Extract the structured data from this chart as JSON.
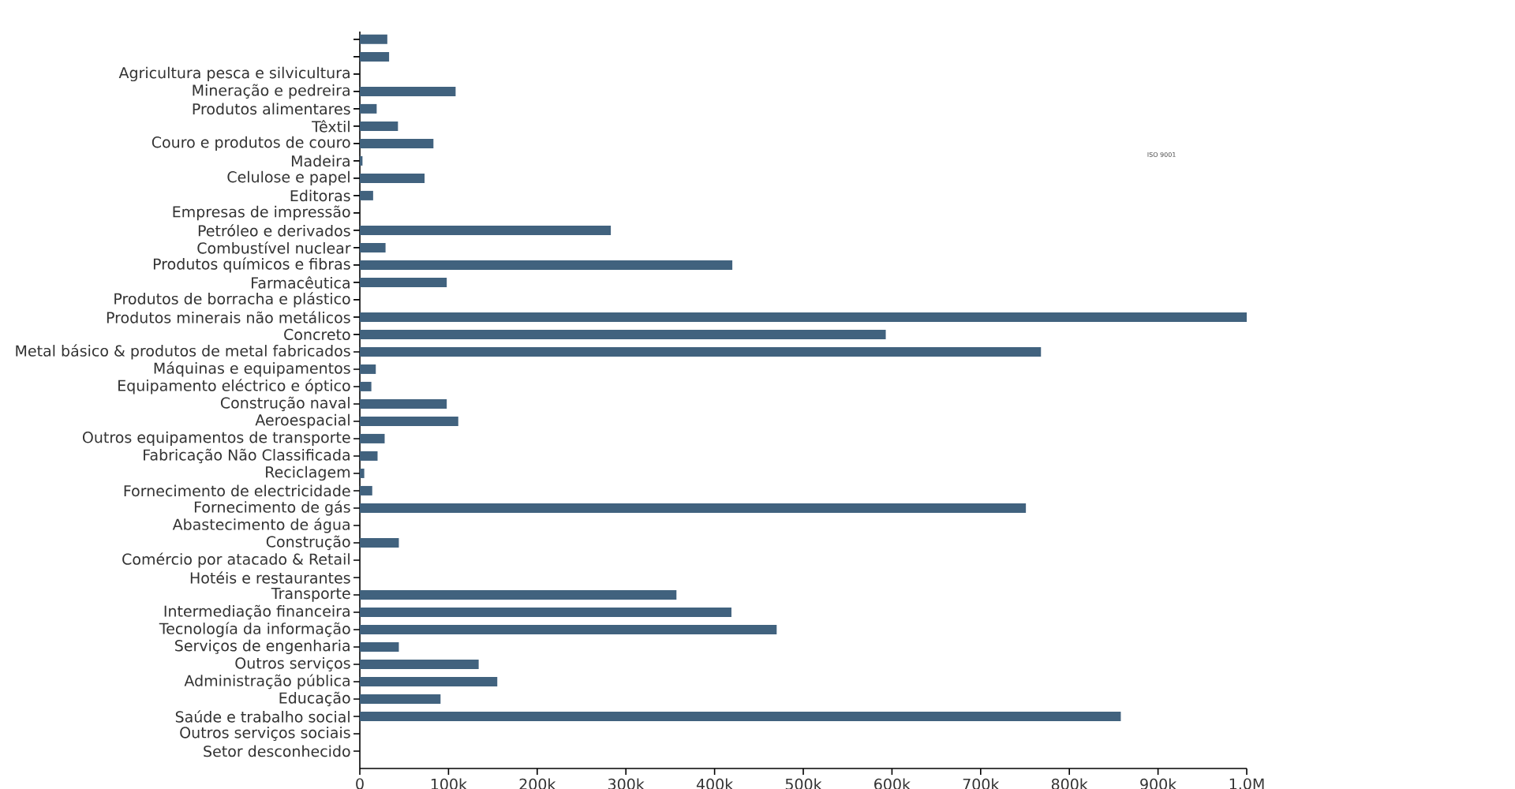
{
  "chart_data": {
    "type": "bar",
    "orientation": "horizontal",
    "color": "#41627e",
    "categories": [
      null,
      null,
      "Agricultura pesca e silvicultura",
      "Mineração e pedreira",
      "Produtos alimentares",
      "Têxtil",
      "Couro e produtos de couro",
      "Madeira",
      "Celulose e papel",
      "Editoras",
      "Empresas de impressão",
      "Petróleo e derivados",
      "Combustível nuclear",
      "Produtos químicos e fibras",
      "Farmacêutica",
      "Produtos de borracha e plástico",
      "Produtos minerais não metálicos",
      "Concreto",
      "Metal básico & produtos de metal fabricados",
      "Máquinas e equipamentos",
      "Equipamento eléctrico e óptico",
      "Construção naval",
      "Aeroespacial",
      "Outros equipamentos de transporte",
      "Fabricação Não Classificada",
      "Reciclagem",
      "Fornecimento de electricidade",
      "Fornecimento de gás",
      "Abastecimento de água",
      "Construção",
      "Comércio por atacado & Retail",
      "Hotéis e restaurantes",
      "Transporte",
      "Intermediação financeira",
      "Tecnología da informação",
      "Serviços de engenharia",
      "Outros serviços",
      "Administração pública",
      "Educação",
      "Saúde e trabalho social",
      "Outros serviços sociais",
      "Setor desconhecido"
    ],
    "values": [
      31000,
      33000,
      0,
      108000,
      19000,
      43000,
      83000,
      3000,
      73000,
      15000,
      0,
      283000,
      29000,
      420000,
      98000,
      0,
      1000000,
      593000,
      768000,
      18000,
      13000,
      98000,
      111000,
      28000,
      20000,
      5000,
      14000,
      751000,
      0,
      44000,
      0,
      0,
      357000,
      419000,
      470000,
      44000,
      134000,
      155000,
      91000,
      858000,
      0,
      0
    ],
    "xlim": [
      0,
      1000000
    ],
    "xticks": [
      0,
      {
        "value": 100000,
        "label": "100k"
      },
      {
        "value": 200000,
        "label": "200k"
      },
      {
        "value": 300000,
        "label": "300k"
      },
      {
        "value": 400000,
        "label": "400k"
      },
      {
        "value": 500000,
        "label": "500k"
      },
      {
        "value": 600000,
        "label": "600k"
      },
      {
        "value": 700000,
        "label": "700k"
      },
      {
        "value": 800000,
        "label": "800k"
      },
      {
        "value": 900000,
        "label": "900k"
      },
      {
        "value": 1000000,
        "label": "1.0M"
      }
    ],
    "annotations": [
      "ISO 9001"
    ]
  }
}
